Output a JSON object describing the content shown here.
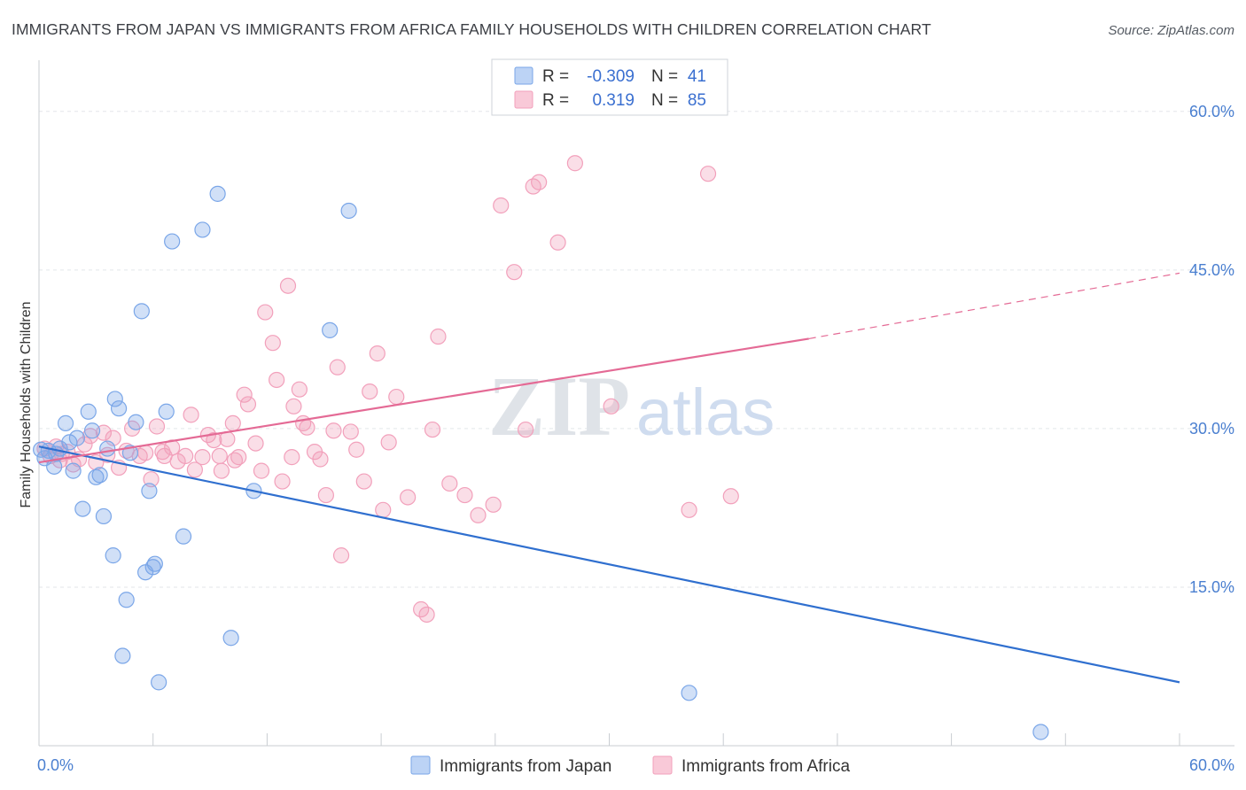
{
  "chart_data": {
    "type": "scatter",
    "title": "IMMIGRANTS FROM JAPAN VS IMMIGRANTS FROM AFRICA FAMILY HOUSEHOLDS WITH CHILDREN CORRELATION CHART",
    "source": "Source: ZipAtlas.com",
    "xlabel": "",
    "ylabel": "Family Households with Children",
    "xlim": [
      0,
      60
    ],
    "ylim": [
      0,
      64
    ],
    "x_tick_labels": [
      "0.0%",
      "60.0%"
    ],
    "y_ticks": [
      15,
      30,
      45,
      60
    ],
    "y_tick_labels": [
      "15.0%",
      "30.0%",
      "45.0%",
      "60.0%"
    ],
    "grid": true,
    "legend_position": "top-center",
    "watermark": {
      "zip": "ZIP",
      "atlas": "atlas"
    },
    "colors": {
      "japan": "#7aa6e8",
      "japan_line": "#2f6fcf",
      "africa": "#f2a0bb",
      "africa_line": "#e46a95"
    },
    "series": [
      {
        "name": "Immigrants from Japan",
        "r_label": "R =",
        "r_value": "-0.309",
        "n_label": "N =",
        "n_value": "41",
        "trend": {
          "x": [
            0,
            60
          ],
          "y": [
            28.3,
            6.0
          ]
        },
        "points": [
          [
            0.1,
            28.0
          ],
          [
            0.3,
            27.2
          ],
          [
            0.5,
            27.9
          ],
          [
            0.8,
            26.4
          ],
          [
            0.9,
            27.6
          ],
          [
            1.1,
            28.1
          ],
          [
            1.4,
            30.5
          ],
          [
            1.6,
            28.7
          ],
          [
            1.8,
            26.0
          ],
          [
            2.0,
            29.1
          ],
          [
            2.3,
            22.4
          ],
          [
            2.6,
            31.6
          ],
          [
            2.8,
            29.8
          ],
          [
            3.0,
            25.4
          ],
          [
            3.2,
            25.6
          ],
          [
            3.4,
            21.7
          ],
          [
            3.6,
            28.1
          ],
          [
            3.9,
            18.0
          ],
          [
            4.0,
            32.8
          ],
          [
            4.2,
            31.9
          ],
          [
            4.4,
            8.5
          ],
          [
            4.6,
            13.8
          ],
          [
            4.8,
            27.7
          ],
          [
            5.1,
            30.6
          ],
          [
            5.4,
            41.1
          ],
          [
            5.6,
            16.4
          ],
          [
            5.8,
            24.1
          ],
          [
            6.0,
            16.9
          ],
          [
            6.1,
            17.2
          ],
          [
            6.3,
            6.0
          ],
          [
            6.7,
            31.6
          ],
          [
            7.0,
            47.7
          ],
          [
            7.6,
            19.8
          ],
          [
            8.6,
            48.8
          ],
          [
            9.4,
            52.2
          ],
          [
            10.1,
            10.2
          ],
          [
            11.3,
            24.1
          ],
          [
            15.3,
            39.3
          ],
          [
            16.3,
            50.6
          ],
          [
            34.2,
            5.0
          ],
          [
            52.7,
            1.3
          ]
        ]
      },
      {
        "name": "Immigrants from Africa",
        "r_label": "R =",
        "r_value": "0.319",
        "n_label": "N =",
        "n_value": "85",
        "trend": {
          "x": [
            0,
            40.5
          ],
          "y": [
            26.8,
            38.5
          ]
        },
        "trend_dashed": {
          "x": [
            40.5,
            60
          ],
          "y": [
            38.5,
            44.7
          ]
        },
        "points": [
          [
            0.3,
            28.1
          ],
          [
            0.6,
            27.4
          ],
          [
            0.9,
            28.3
          ],
          [
            1.2,
            27.6
          ],
          [
            1.5,
            27.8
          ],
          [
            1.8,
            26.6
          ],
          [
            2.1,
            27.1
          ],
          [
            2.4,
            28.5
          ],
          [
            2.7,
            29.3
          ],
          [
            3.0,
            26.8
          ],
          [
            3.4,
            29.6
          ],
          [
            3.6,
            27.5
          ],
          [
            3.9,
            29.1
          ],
          [
            4.2,
            26.3
          ],
          [
            4.6,
            27.9
          ],
          [
            4.9,
            30.0
          ],
          [
            5.3,
            27.4
          ],
          [
            5.6,
            27.7
          ],
          [
            5.9,
            25.2
          ],
          [
            6.2,
            30.2
          ],
          [
            6.6,
            27.4
          ],
          [
            7.0,
            28.2
          ],
          [
            7.3,
            26.9
          ],
          [
            7.7,
            27.4
          ],
          [
            8.0,
            31.3
          ],
          [
            8.2,
            26.1
          ],
          [
            8.6,
            27.3
          ],
          [
            8.9,
            29.4
          ],
          [
            9.2,
            28.9
          ],
          [
            9.5,
            27.4
          ],
          [
            9.6,
            26.0
          ],
          [
            9.9,
            29.0
          ],
          [
            10.2,
            30.5
          ],
          [
            10.5,
            27.3
          ],
          [
            10.8,
            33.2
          ],
          [
            11.0,
            32.3
          ],
          [
            11.4,
            28.6
          ],
          [
            11.7,
            26.0
          ],
          [
            11.9,
            41.0
          ],
          [
            12.3,
            38.1
          ],
          [
            12.5,
            34.6
          ],
          [
            12.8,
            25.0
          ],
          [
            13.1,
            43.5
          ],
          [
            13.4,
            32.1
          ],
          [
            13.7,
            33.7
          ],
          [
            13.9,
            30.5
          ],
          [
            14.1,
            30.1
          ],
          [
            14.5,
            27.8
          ],
          [
            14.8,
            27.1
          ],
          [
            15.1,
            23.7
          ],
          [
            15.5,
            29.8
          ],
          [
            15.7,
            35.8
          ],
          [
            15.9,
            18.0
          ],
          [
            16.4,
            29.7
          ],
          [
            16.7,
            28.0
          ],
          [
            17.1,
            25.0
          ],
          [
            17.4,
            33.5
          ],
          [
            17.8,
            37.1
          ],
          [
            18.1,
            22.3
          ],
          [
            18.4,
            28.7
          ],
          [
            18.8,
            33.0
          ],
          [
            19.4,
            23.5
          ],
          [
            20.1,
            12.9
          ],
          [
            20.4,
            12.4
          ],
          [
            20.7,
            29.9
          ],
          [
            21.0,
            38.7
          ],
          [
            21.6,
            24.8
          ],
          [
            22.4,
            23.7
          ],
          [
            23.1,
            21.8
          ],
          [
            23.9,
            22.8
          ],
          [
            24.3,
            51.1
          ],
          [
            25.0,
            44.8
          ],
          [
            25.6,
            29.9
          ],
          [
            26.0,
            52.9
          ],
          [
            26.3,
            53.3
          ],
          [
            27.3,
            47.6
          ],
          [
            28.2,
            55.1
          ],
          [
            34.2,
            22.3
          ],
          [
            35.2,
            54.1
          ],
          [
            36.4,
            23.6
          ],
          [
            30.1,
            32.1
          ],
          [
            6.5,
            27.8
          ],
          [
            10.3,
            27.0
          ],
          [
            13.3,
            27.3
          ],
          [
            1.1,
            27.0
          ]
        ]
      }
    ]
  }
}
